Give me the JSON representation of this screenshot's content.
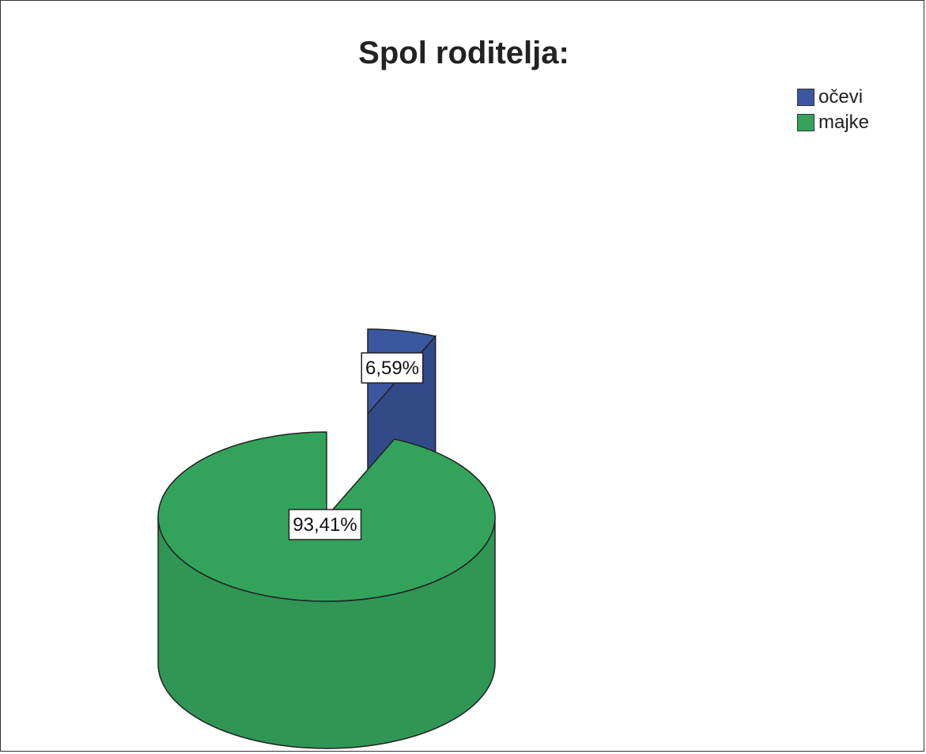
{
  "chart_data": {
    "type": "pie",
    "title": "Spol roditelja:",
    "legend_position": "top-right",
    "slices": [
      {
        "label": "očevi",
        "value": 6.59,
        "value_label": "6,59%",
        "color": "#3a57a0",
        "exploded": true
      },
      {
        "label": "majke",
        "value": 93.41,
        "value_label": "93,41%",
        "color": "#33a35c",
        "exploded": false
      }
    ]
  }
}
